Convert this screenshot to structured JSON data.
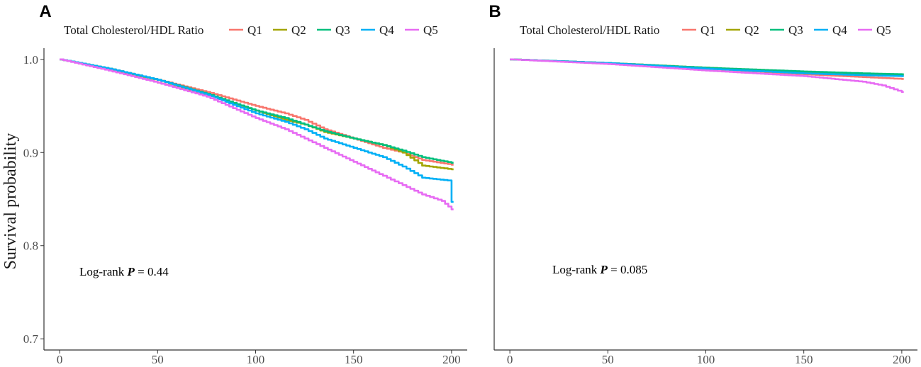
{
  "chart_data": [
    {
      "type": "line",
      "panel": "A",
      "title": "",
      "xlabel": "",
      "ylabel": "Survival probability",
      "xlim": [
        -8,
        208
      ],
      "ylim": [
        0.688,
        1.012
      ],
      "x_ticks": [
        "0",
        "50",
        "100",
        "150",
        "200"
      ],
      "y_ticks": [
        "0.7",
        "0.8",
        "0.9",
        "1.0"
      ],
      "grid": false,
      "legend_title": "Total Cholesterol/HDL Ratio",
      "legend_position": "top",
      "annotation": {
        "prefix": "Log-rank ",
        "p": "P",
        "value": " = 0.44"
      },
      "series": [
        {
          "name": "Q1",
          "color": "#F8766D",
          "x": [
            0,
            25,
            50,
            75,
            100,
            115,
            125,
            135,
            150,
            165,
            175,
            185,
            200
          ],
          "values": [
            1.0,
            0.99,
            0.978,
            0.965,
            0.95,
            0.942,
            0.935,
            0.925,
            0.915,
            0.905,
            0.9,
            0.892,
            0.887
          ]
        },
        {
          "name": "Q2",
          "color": "#A3A500",
          "x": [
            0,
            25,
            50,
            75,
            100,
            115,
            125,
            135,
            150,
            165,
            175,
            185,
            200
          ],
          "values": [
            1.0,
            0.99,
            0.975,
            0.962,
            0.945,
            0.935,
            0.93,
            0.922,
            0.915,
            0.908,
            0.9,
            0.886,
            0.882
          ]
        },
        {
          "name": "Q3",
          "color": "#00BF7D",
          "x": [
            0,
            25,
            50,
            75,
            100,
            115,
            125,
            135,
            150,
            165,
            175,
            185,
            200
          ],
          "values": [
            1.0,
            0.99,
            0.978,
            0.963,
            0.945,
            0.937,
            0.93,
            0.923,
            0.915,
            0.908,
            0.902,
            0.895,
            0.889
          ]
        },
        {
          "name": "Q4",
          "color": "#00B0F6",
          "x": [
            0,
            25,
            50,
            75,
            100,
            115,
            125,
            135,
            150,
            165,
            175,
            185,
            198,
            200
          ],
          "values": [
            1.0,
            0.99,
            0.978,
            0.962,
            0.942,
            0.933,
            0.925,
            0.915,
            0.905,
            0.895,
            0.885,
            0.873,
            0.87,
            0.847
          ]
        },
        {
          "name": "Q5",
          "color": "#E76BF3",
          "x": [
            0,
            25,
            50,
            75,
            100,
            115,
            125,
            135,
            150,
            165,
            175,
            185,
            195,
            200
          ],
          "values": [
            1.0,
            0.988,
            0.975,
            0.96,
            0.937,
            0.925,
            0.915,
            0.905,
            0.89,
            0.875,
            0.865,
            0.855,
            0.848,
            0.839
          ]
        }
      ]
    },
    {
      "type": "line",
      "panel": "B",
      "title": "",
      "xlabel": "",
      "ylabel": "",
      "xlim": [
        -8,
        208
      ],
      "ylim": [
        0.688,
        1.012
      ],
      "x_ticks": [
        "0",
        "50",
        "100",
        "150",
        "200"
      ],
      "y_ticks": [],
      "grid": false,
      "legend_title": "Total Cholesterol/HDL Ratio",
      "legend_position": "top",
      "annotation": {
        "prefix": "Log-rank ",
        "p": "P",
        "value": " = 0.085"
      },
      "series": [
        {
          "name": "Q1",
          "color": "#F8766D",
          "x": [
            0,
            50,
            100,
            150,
            180,
            200
          ],
          "values": [
            1.0,
            0.996,
            0.99,
            0.984,
            0.981,
            0.979
          ]
        },
        {
          "name": "Q2",
          "color": "#A3A500",
          "x": [
            0,
            50,
            100,
            150,
            180,
            200
          ],
          "values": [
            1.0,
            0.996,
            0.991,
            0.986,
            0.984,
            0.983
          ]
        },
        {
          "name": "Q3",
          "color": "#00BF7D",
          "x": [
            0,
            50,
            100,
            150,
            180,
            200
          ],
          "values": [
            1.0,
            0.996,
            0.991,
            0.987,
            0.985,
            0.984
          ]
        },
        {
          "name": "Q4",
          "color": "#00B0F6",
          "x": [
            0,
            50,
            100,
            150,
            180,
            200
          ],
          "values": [
            1.0,
            0.996,
            0.99,
            0.985,
            0.983,
            0.982
          ]
        },
        {
          "name": "Q5",
          "color": "#E76BF3",
          "x": [
            0,
            50,
            100,
            150,
            180,
            190,
            200
          ],
          "values": [
            1.0,
            0.995,
            0.988,
            0.982,
            0.976,
            0.972,
            0.965
          ]
        }
      ]
    }
  ]
}
